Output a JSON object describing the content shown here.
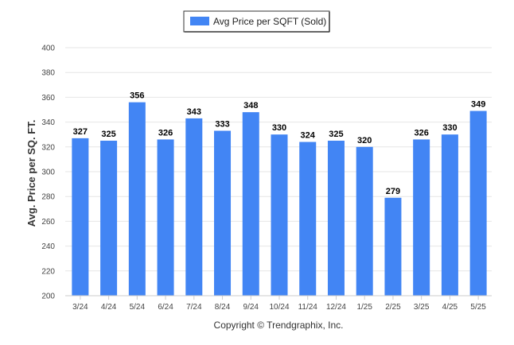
{
  "chart_data": {
    "type": "bar",
    "categories": [
      "3/24",
      "4/24",
      "5/24",
      "6/24",
      "7/24",
      "8/24",
      "9/24",
      "10/24",
      "11/24",
      "12/24",
      "1/25",
      "2/25",
      "3/25",
      "4/25",
      "5/25"
    ],
    "series": [
      {
        "name": "Avg Price per SQFT (Sold)",
        "values": [
          327,
          325,
          356,
          326,
          343,
          333,
          348,
          330,
          324,
          325,
          320,
          279,
          326,
          330,
          349
        ],
        "color": "#4285f4"
      }
    ],
    "ylabel": "Avg. Price per SQ. FT.",
    "xlabel": "",
    "ylim": [
      200,
      400
    ],
    "yticks": [
      200,
      220,
      240,
      260,
      280,
      300,
      320,
      340,
      360,
      380,
      400
    ],
    "grid": true,
    "legend_position": "top-center",
    "data_labels": true
  },
  "footer": {
    "copyright": "Copyright © Trendgraphix, Inc."
  }
}
